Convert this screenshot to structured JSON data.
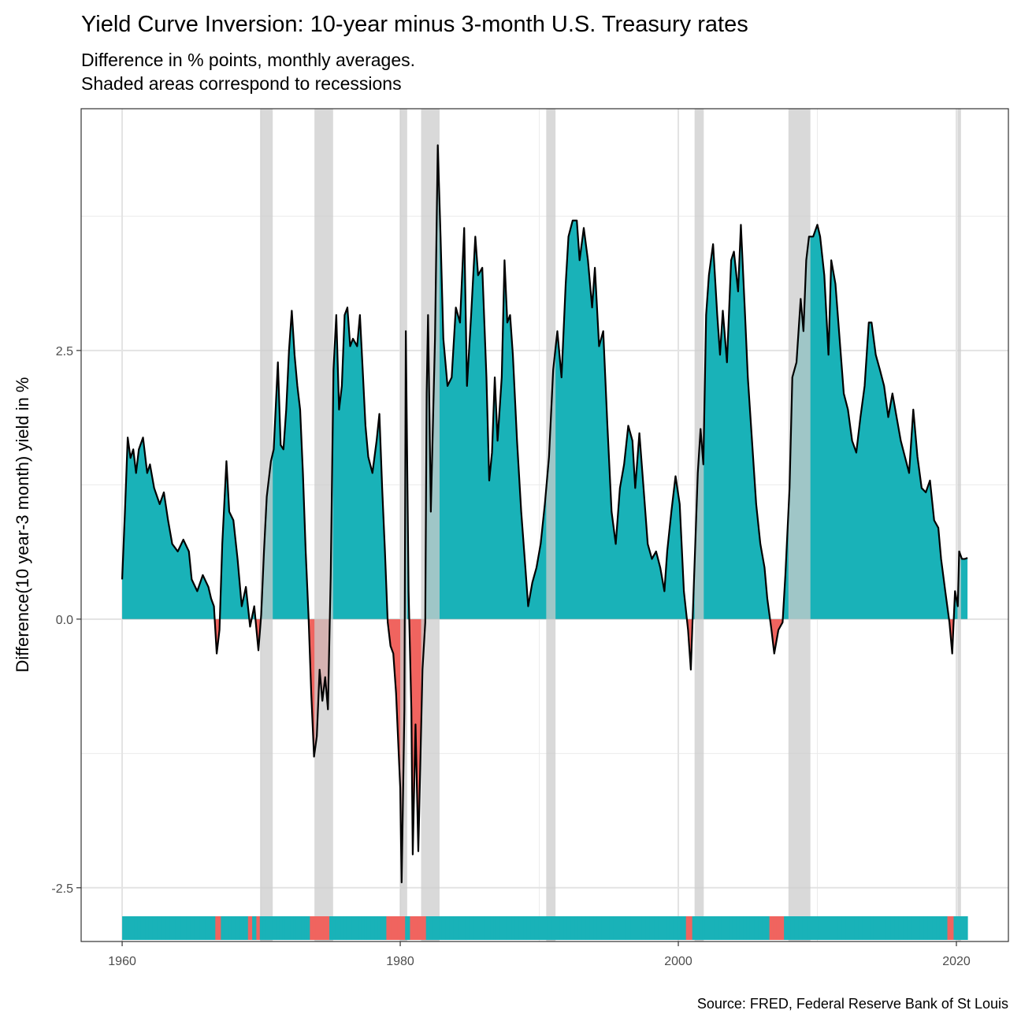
{
  "chart_data": {
    "type": "area",
    "title": "Yield Curve Inversion: 10-year minus 3-month U.S. Treasury rates",
    "subtitle": [
      "Difference in % points, monthly averages.",
      "Shaded areas correspond to recessions"
    ],
    "y_label": "Difference(10 year-3 month) yield in %",
    "caption": "Source: FRED, Federal Reserve Bank of St Louis",
    "xlim": [
      1957.05,
      2023.74
    ],
    "ylim": [
      -3.0,
      4.75
    ],
    "xticks": [
      1960,
      1980,
      2000,
      2020
    ],
    "yticks": [
      {
        "value": -2.5,
        "label": "-2.5"
      },
      {
        "value": 0,
        "label": "0.0"
      },
      {
        "value": 2.5,
        "label": "2.5"
      }
    ],
    "x_minor_grid": [
      1970,
      1990,
      2010
    ],
    "y_minor_grid": [
      -1.25,
      1.25,
      3.75
    ],
    "grid": true,
    "positive_color": "#19b2b8",
    "negative_color": "#f0645f",
    "recession_color": "#cccccc",
    "line_color": "#000000",
    "recessions": [
      [
        1969.92,
        1970.83
      ],
      [
        1973.83,
        1975.17
      ],
      [
        1980.0,
        1980.5
      ],
      [
        1981.5,
        1982.83
      ],
      [
        1990.5,
        1991.17
      ],
      [
        2001.17,
        2001.83
      ],
      [
        2007.92,
        2009.5
      ],
      [
        2020.08,
        2020.33
      ]
    ],
    "x": [
      1960.0,
      1960.2,
      1960.4,
      1960.6,
      1960.8,
      1961.0,
      1961.2,
      1961.5,
      1961.8,
      1962.0,
      1962.3,
      1962.7,
      1963.0,
      1963.3,
      1963.6,
      1964.0,
      1964.4,
      1964.8,
      1965.0,
      1965.4,
      1965.8,
      1966.2,
      1966.4,
      1966.6,
      1966.8,
      1967.0,
      1967.2,
      1967.5,
      1967.7,
      1968.0,
      1968.3,
      1968.6,
      1968.9,
      1969.2,
      1969.5,
      1969.8,
      1970.0,
      1970.2,
      1970.4,
      1970.7,
      1970.9,
      1971.2,
      1971.4,
      1971.6,
      1971.8,
      1972.0,
      1972.2,
      1972.4,
      1972.6,
      1972.8,
      1973.0,
      1973.2,
      1973.4,
      1973.6,
      1973.8,
      1974.0,
      1974.2,
      1974.4,
      1974.6,
      1974.8,
      1975.0,
      1975.2,
      1975.4,
      1975.6,
      1975.8,
      1976.0,
      1976.2,
      1976.4,
      1976.6,
      1976.9,
      1977.1,
      1977.3,
      1977.5,
      1977.7,
      1978.0,
      1978.3,
      1978.5,
      1978.7,
      1978.9,
      1979.1,
      1979.3,
      1979.5,
      1979.7,
      1979.9,
      1980.0,
      1980.1,
      1980.3,
      1980.4,
      1980.6,
      1980.8,
      1980.9,
      1981.1,
      1981.3,
      1981.6,
      1981.8,
      1981.9,
      1982.0,
      1982.2,
      1982.5,
      1982.7,
      1982.9,
      1983.1,
      1983.4,
      1983.7,
      1984.0,
      1984.3,
      1984.6,
      1984.8,
      1985.1,
      1985.4,
      1985.6,
      1985.9,
      1986.2,
      1986.4,
      1986.6,
      1986.8,
      1987.0,
      1987.3,
      1987.5,
      1987.7,
      1987.9,
      1988.1,
      1988.4,
      1988.7,
      1989.0,
      1989.2,
      1989.5,
      1989.8,
      1990.1,
      1990.4,
      1990.7,
      1991.0,
      1991.3,
      1991.6,
      1991.9,
      1992.1,
      1992.4,
      1992.7,
      1992.9,
      1993.2,
      1993.5,
      1993.8,
      1994.0,
      1994.3,
      1994.6,
      1994.9,
      1995.2,
      1995.5,
      1995.8,
      1996.1,
      1996.4,
      1996.7,
      1996.9,
      1997.2,
      1997.5,
      1997.8,
      1998.1,
      1998.4,
      1998.7,
      1999.0,
      1999.2,
      1999.5,
      1999.8,
      2000.1,
      2000.4,
      2000.7,
      2000.9,
      2001.1,
      2001.4,
      2001.6,
      2001.8,
      2002.0,
      2002.2,
      2002.5,
      2002.8,
      2003.0,
      2003.2,
      2003.5,
      2003.8,
      2004.0,
      2004.3,
      2004.5,
      2004.8,
      2005.0,
      2005.3,
      2005.6,
      2005.9,
      2006.2,
      2006.4,
      2006.7,
      2006.9,
      2007.2,
      2007.5,
      2007.7,
      2008.0,
      2008.2,
      2008.5,
      2008.8,
      2009.0,
      2009.2,
      2009.4,
      2009.7,
      2010.0,
      2010.2,
      2010.5,
      2010.8,
      2011.0,
      2011.3,
      2011.6,
      2011.9,
      2012.2,
      2012.5,
      2012.8,
      2013.1,
      2013.4,
      2013.7,
      2013.9,
      2014.2,
      2014.5,
      2014.8,
      2015.1,
      2015.4,
      2015.7,
      2016.0,
      2016.3,
      2016.6,
      2016.9,
      2017.2,
      2017.5,
      2017.8,
      2018.1,
      2018.4,
      2018.7,
      2018.9,
      2019.2,
      2019.5,
      2019.7,
      2019.9,
      2020.1,
      2020.2,
      2020.4,
      2020.6,
      2020.8
    ],
    "values": [
      0.37,
      1.0,
      1.69,
      1.5,
      1.58,
      1.36,
      1.58,
      1.69,
      1.36,
      1.44,
      1.22,
      1.07,
      1.18,
      0.92,
      0.7,
      0.63,
      0.74,
      0.63,
      0.37,
      0.26,
      0.41,
      0.3,
      0.19,
      0.12,
      -0.32,
      -0.1,
      0.7,
      1.47,
      1.0,
      0.92,
      0.56,
      0.12,
      0.3,
      -0.07,
      0.12,
      -0.29,
      0.04,
      0.63,
      1.14,
      1.47,
      1.58,
      2.39,
      1.62,
      1.58,
      1.95,
      2.5,
      2.87,
      2.46,
      2.17,
      1.95,
      1.36,
      0.63,
      0.04,
      -0.69,
      -1.28,
      -1.09,
      -0.47,
      -0.76,
      -0.54,
      -0.84,
      0.41,
      2.32,
      2.83,
      1.95,
      2.17,
      2.83,
      2.9,
      2.54,
      2.61,
      2.54,
      2.83,
      2.32,
      1.8,
      1.51,
      1.36,
      1.66,
      1.91,
      1.22,
      0.63,
      -0.03,
      -0.25,
      -0.32,
      -0.69,
      -1.28,
      -1.57,
      -2.45,
      -0.84,
      2.68,
      0.26,
      -0.84,
      -2.19,
      -0.98,
      -2.16,
      -0.47,
      -0.03,
      2.1,
      2.83,
      1.0,
      2.61,
      4.41,
      3.56,
      2.61,
      2.17,
      2.25,
      2.9,
      2.76,
      3.64,
      2.17,
      2.83,
      3.56,
      3.2,
      3.27,
      2.25,
      1.29,
      1.55,
      2.25,
      1.66,
      2.25,
      3.34,
      2.76,
      2.83,
      2.46,
      1.66,
      1.0,
      0.48,
      0.12,
      0.34,
      0.48,
      0.7,
      1.07,
      1.51,
      2.32,
      2.68,
      2.25,
      3.12,
      3.56,
      3.71,
      3.71,
      3.34,
      3.64,
      3.34,
      2.9,
      3.27,
      2.54,
      2.68,
      1.8,
      1.0,
      0.7,
      1.22,
      1.44,
      1.8,
      1.66,
      1.22,
      1.73,
      1.22,
      0.7,
      0.56,
      0.63,
      0.48,
      0.26,
      0.63,
      1.0,
      1.33,
      1.07,
      0.26,
      -0.1,
      -0.47,
      0.26,
      1.36,
      1.77,
      1.44,
      2.83,
      3.2,
      3.49,
      2.83,
      2.46,
      2.87,
      2.39,
      3.34,
      3.42,
      3.05,
      3.67,
      2.83,
      2.25,
      1.66,
      1.07,
      0.7,
      0.48,
      0.19,
      -0.1,
      -0.32,
      -0.1,
      -0.03,
      0.41,
      1.22,
      2.25,
      2.39,
      2.98,
      2.68,
      3.34,
      3.56,
      3.56,
      3.67,
      3.56,
      3.2,
      2.46,
      3.34,
      3.12,
      2.61,
      2.1,
      1.95,
      1.66,
      1.55,
      1.88,
      2.17,
      2.76,
      2.76,
      2.46,
      2.32,
      2.17,
      1.88,
      2.1,
      1.88,
      1.66,
      1.51,
      1.36,
      1.95,
      1.51,
      1.22,
      1.18,
      1.29,
      0.92,
      0.85,
      0.56,
      0.26,
      -0.03,
      -0.32,
      0.26,
      0.12,
      0.63,
      0.56,
      0.56,
      0.57
    ]
  }
}
